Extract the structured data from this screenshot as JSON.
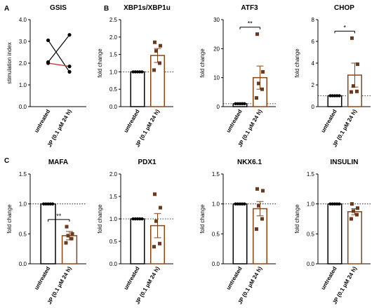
{
  "panel_letters": [
    "A",
    "B",
    "C"
  ],
  "colors": {
    "treated": "#8B4513",
    "points": "#6B3A1E",
    "untreated": "#000000",
    "gsis_up": "#000000",
    "gsis_down": "#c62828"
  },
  "chart_data": [
    {
      "type": "line",
      "title": "GSIS",
      "ylabel": "stimulation index",
      "categories": [
        "untreated",
        "JP (0.1 μM 24 h)"
      ],
      "ylim": [
        0,
        4
      ],
      "yticks": [
        "0.0",
        "1.0",
        "2.0",
        "3.0",
        "4.0"
      ],
      "series": [
        {
          "values": [
            3.05,
            1.6
          ]
        },
        {
          "values": [
            2.05,
            3.3
          ]
        },
        {
          "values": [
            2.0,
            1.85
          ]
        }
      ]
    },
    {
      "type": "bar",
      "title": "XBP1s/XBP1u",
      "ylabel": "fold change",
      "categories": [
        "untreated",
        "JP (0.1 μM 24 h)"
      ],
      "ylim": [
        0,
        2.5
      ],
      "yticks": [
        "0.0",
        "0.5",
        "1.0",
        "1.5",
        "2.0",
        "2.5"
      ],
      "refline": 1.0,
      "values": [
        1.0,
        1.47
      ],
      "errors": [
        0.0,
        0.2
      ],
      "points": [
        [
          1,
          1,
          1,
          1,
          1
        ],
        [
          1.85,
          1.75,
          1.6,
          1.25,
          1.05
        ]
      ],
      "significance": ""
    },
    {
      "type": "bar",
      "title": "ATF3",
      "ylabel": "fold change",
      "categories": [
        "untreated",
        "JP (0.1 μM 24 h)"
      ],
      "ylim": [
        0,
        30
      ],
      "yticks": [
        "0",
        "10",
        "20",
        "30"
      ],
      "refline": 1.0,
      "values": [
        1.0,
        10.0
      ],
      "errors": [
        0.0,
        4.0
      ],
      "points": [
        [
          1,
          1,
          1,
          1,
          1
        ],
        [
          25,
          12,
          8,
          6,
          3
        ]
      ],
      "significance": "**"
    },
    {
      "type": "bar",
      "title": "CHOP",
      "ylabel": "fold change",
      "categories": [
        "untreated",
        "JP (0.1 μM 24 h)"
      ],
      "ylim": [
        0,
        8
      ],
      "yticks": [
        "0",
        "2",
        "4",
        "6",
        "8"
      ],
      "refline": 1.0,
      "values": [
        1.0,
        2.9
      ],
      "errors": [
        0.0,
        1.1
      ],
      "points": [
        [
          1,
          1,
          1,
          1,
          1
        ],
        [
          6.3,
          3.9,
          1.9,
          1.4,
          1.35
        ]
      ],
      "significance": "*"
    },
    {
      "type": "bar",
      "title": "MAFA",
      "ylabel": "fold change",
      "categories": [
        "untreated",
        "JP (0.1 μM 24 h)"
      ],
      "ylim": [
        0,
        1.5
      ],
      "yticks": [
        "0.0",
        "0.5",
        "1.0",
        "1.5"
      ],
      "refline": 1.0,
      "values": [
        1.0,
        0.47
      ],
      "errors": [
        0.0,
        0.07
      ],
      "points": [
        [
          1,
          1,
          1,
          1,
          1
        ],
        [
          0.62,
          0.5,
          0.47,
          0.42,
          0.35
        ]
      ],
      "significance": "**"
    },
    {
      "type": "bar",
      "title": "PDX1",
      "ylabel": "fold change",
      "categories": [
        "untreated",
        "JP (0.1 μM 24 h)"
      ],
      "ylim": [
        0,
        2.0
      ],
      "yticks": [
        "0.0",
        "0.5",
        "1.0",
        "1.5",
        "2.0"
      ],
      "refline": 1.0,
      "values": [
        1.0,
        0.85
      ],
      "errors": [
        0.0,
        0.27
      ],
      "points": [
        [
          1,
          1,
          1,
          1,
          1
        ],
        [
          1.55,
          1.25,
          0.95,
          0.45,
          0.38
        ]
      ],
      "significance": ""
    },
    {
      "type": "bar",
      "title": "NKX6.1",
      "ylabel": "fold change",
      "categories": [
        "untreated",
        "JP (0.1 μM 24 h)"
      ],
      "ylim": [
        0,
        1.5
      ],
      "yticks": [
        "0.0",
        "0.5",
        "1.0",
        "1.5"
      ],
      "refline": 1.0,
      "values": [
        1.0,
        0.92
      ],
      "errors": [
        0.0,
        0.12
      ],
      "points": [
        [
          1,
          1,
          1,
          1,
          1
        ],
        [
          1.25,
          1.22,
          0.97,
          0.75,
          0.58
        ]
      ],
      "significance": ""
    },
    {
      "type": "bar",
      "title": "INSULIN",
      "ylabel": "fold change",
      "categories": [
        "untreated",
        "JP (0.1 μM 24 h)"
      ],
      "ylim": [
        0,
        1.5
      ],
      "yticks": [
        "0.0",
        "0.5",
        "1.0",
        "1.5"
      ],
      "refline": 1.0,
      "values": [
        1.0,
        0.87
      ],
      "errors": [
        0.0,
        0.05
      ],
      "points": [
        [
          1,
          1,
          1,
          1,
          1
        ],
        [
          1.0,
          0.93,
          0.88,
          0.82,
          0.75
        ]
      ],
      "significance": ""
    }
  ]
}
